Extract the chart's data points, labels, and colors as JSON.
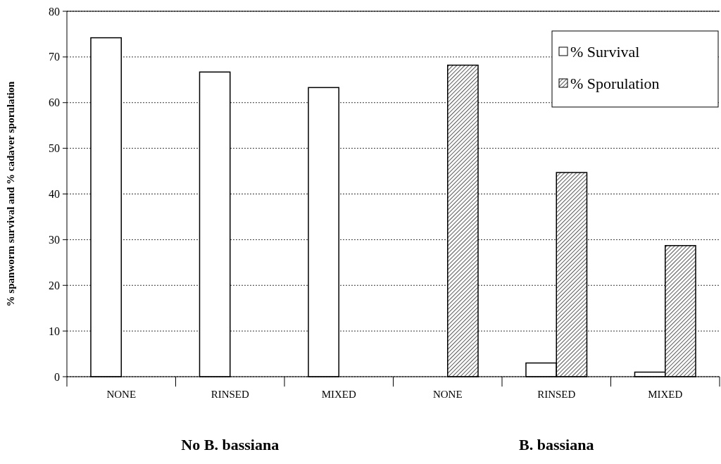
{
  "chart_data": {
    "type": "bar",
    "ylabel": "% spanworm survival and % cadaver sporulation",
    "categories": [
      "NONE",
      "RINSED",
      "MIXED",
      "NONE",
      "RINSED",
      "MIXED"
    ],
    "series": [
      {
        "name": "% Survival",
        "color": "#ffffff",
        "values": [
          74.2,
          66.7,
          63.3,
          null,
          3,
          1
        ]
      },
      {
        "name": "% Sporulation",
        "color": "#000000",
        "values": [
          null,
          null,
          null,
          68.2,
          44.7,
          28.7
        ]
      }
    ],
    "ylim": [
      0,
      80
    ],
    "yticks": [
      0,
      10,
      20,
      30,
      40,
      50,
      60,
      70,
      80
    ],
    "grid": "y",
    "legend": "top right",
    "annotations": [
      "No B. bassiana",
      "B. bassiana"
    ]
  }
}
